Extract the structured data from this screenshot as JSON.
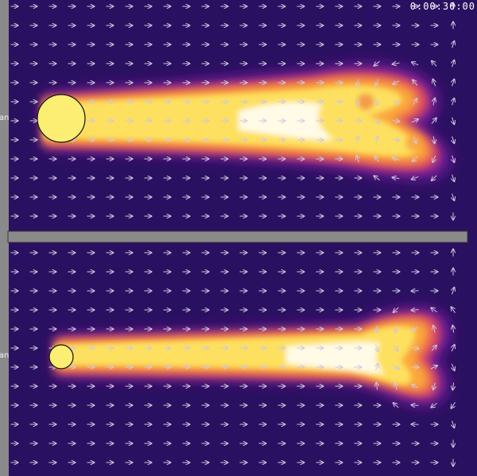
{
  "timer": "0:00:30:00",
  "panels": [
    {
      "fan_label": "Fan",
      "fan_size": "large"
    },
    {
      "fan_label": "Fan",
      "fan_size": "small"
    }
  ],
  "colors": {
    "background": "#2a1060",
    "wall": "#8a8a8a",
    "fan_fill": "#fbee72",
    "arrow": "#cfc8df",
    "colormap": "plasma"
  },
  "icons": {
    "fan": "circle",
    "vector": "arrow-icon"
  }
}
